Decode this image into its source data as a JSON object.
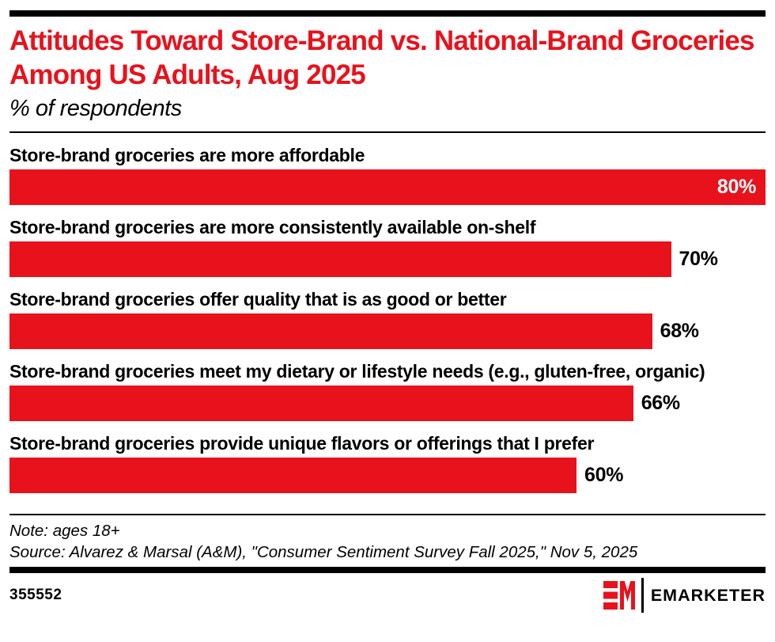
{
  "colors": {
    "red": "#E8121C",
    "black": "#000000",
    "white": "#FFFFFF"
  },
  "chart_data": {
    "type": "bar",
    "orientation": "horizontal",
    "title": "Attitudes Toward Store-Brand vs. National-Brand Groceries Among US Adults, Aug 2025",
    "subtitle": "% of respondents",
    "unit": "%",
    "axis_max": 80,
    "bar_color": "#E8121C",
    "grid": false,
    "legend": false,
    "value_labels_shown": true,
    "categories": [
      "Store-brand groceries are more affordable",
      "Store-brand groceries are more consistently available on-shelf",
      "Store-brand groceries offer quality that is as good or better",
      "Store-brand groceries meet my dietary or lifestyle needs (e.g., gluten-free, organic)",
      "Store-brand groceries provide unique flavors or offerings that I prefer"
    ],
    "values": [
      80,
      70,
      68,
      66,
      60
    ]
  },
  "footer": {
    "note": "Note: ages 18+",
    "source": "Source: Alvarez & Marsal (A&M),  \"Consumer Sentiment Survey Fall 2025,\" Nov 5, 2025",
    "chart_id": "355552",
    "brand_name": "EMARKETER"
  }
}
